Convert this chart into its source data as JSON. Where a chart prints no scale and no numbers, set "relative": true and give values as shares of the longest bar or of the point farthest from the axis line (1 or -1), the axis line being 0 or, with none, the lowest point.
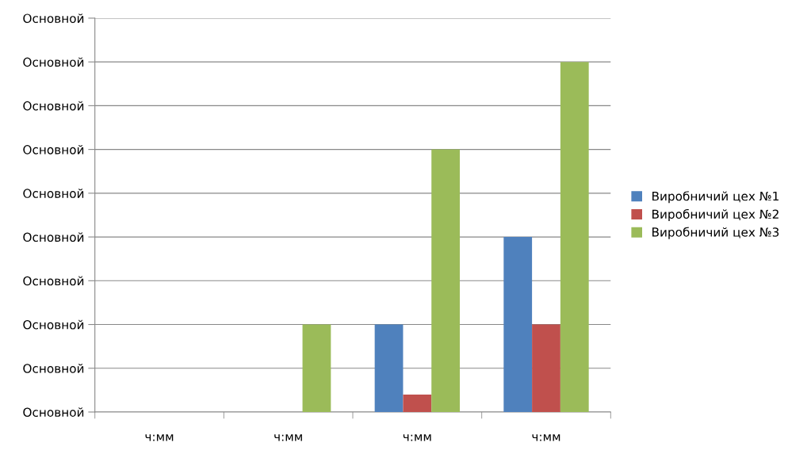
{
  "chart_data": {
    "type": "bar",
    "relative": true,
    "categories": [
      "ч:мм",
      "ч:мм",
      "ч:мм",
      "ч:мм"
    ],
    "series": [
      {
        "name": "Виробничий цех №1",
        "color": "#4f81bd",
        "values": [
          0,
          0,
          0.25,
          0.5
        ]
      },
      {
        "name": "Виробничий цех №2",
        "color": "#c0504d",
        "values": [
          0,
          0,
          0.05,
          0.25
        ]
      },
      {
        "name": "Виробничий цех №3",
        "color": "#9bbb59",
        "values": [
          0,
          0.25,
          0.75,
          1
        ]
      }
    ],
    "annotations": [
      "Основной",
      "Основной",
      "Основной",
      "Основной",
      "Основной",
      "Основной",
      "Основной",
      "Основной",
      "Основной",
      "Основной"
    ],
    "grid": "y",
    "legend": "right"
  }
}
